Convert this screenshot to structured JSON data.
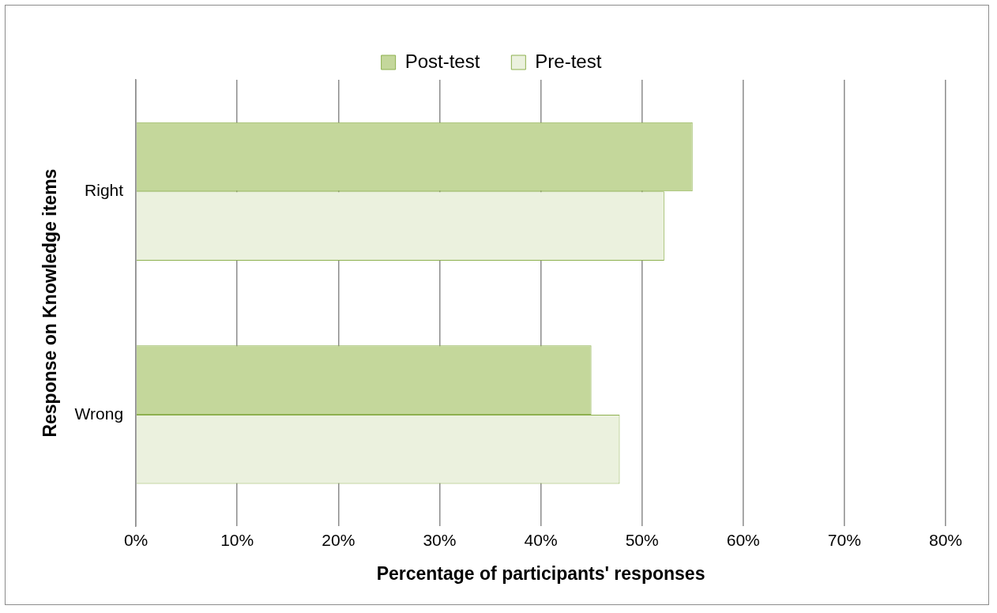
{
  "chart_data": {
    "type": "bar",
    "orientation": "horizontal",
    "x_label": "Percentage of participants' responses",
    "y_label": "Response on Knowledge items",
    "categories": [
      "Right",
      "Wrong"
    ],
    "series": [
      {
        "name": "Post-test",
        "color": "#c4d79b",
        "values": [
          55,
          45
        ]
      },
      {
        "name": "Pre-test",
        "color": "#ebf1de",
        "values": [
          52.2,
          47.8
        ]
      }
    ],
    "xlim": [
      0,
      80
    ],
    "xticks": [
      {
        "value": 0,
        "label": "0%"
      },
      {
        "value": 10,
        "label": "10%"
      },
      {
        "value": 20,
        "label": "20%"
      },
      {
        "value": 30,
        "label": "30%"
      },
      {
        "value": 40,
        "label": "40%"
      },
      {
        "value": 50,
        "label": "50%"
      },
      {
        "value": 60,
        "label": "60%"
      },
      {
        "value": 70,
        "label": "70%"
      },
      {
        "value": 80,
        "label": "80%"
      }
    ],
    "grid": true,
    "legend": "top"
  }
}
